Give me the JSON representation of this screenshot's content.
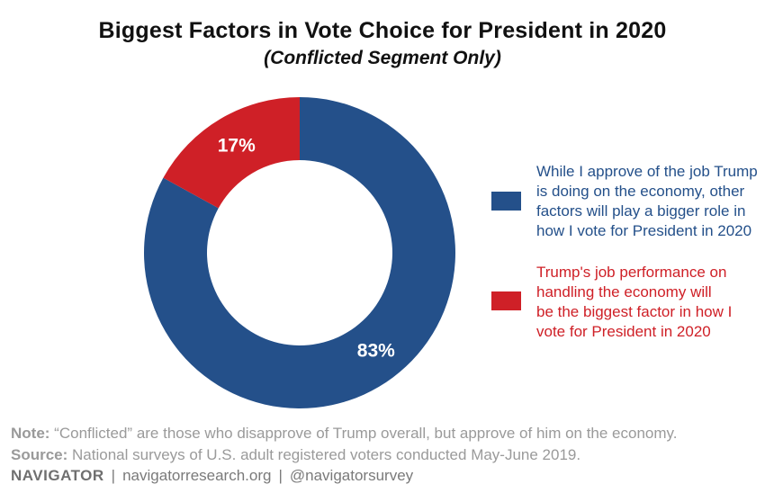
{
  "chart_data": {
    "type": "pie",
    "variant": "donut",
    "title": "Biggest Factors in Vote Choice for President in 2020",
    "subtitle": "(Conflicted Segment Only)",
    "slices": [
      {
        "label": "While I approve of the job Trump is doing on the economy, other factors will play a bigger role in how I vote for President in 2020",
        "value": 83,
        "display": "83%",
        "color": "#24508a"
      },
      {
        "label": "Trump's job performance on handling the economy will be the biggest factor in how I vote for President in 2020",
        "value": 17,
        "display": "17%",
        "color": "#cf2027"
      }
    ],
    "legend_position": "right"
  },
  "legend": [
    {
      "lines": [
        "While I approve of the job Trump",
        "is doing on the economy, other",
        "factors will play a bigger role in",
        "how I vote for President in 2020"
      ],
      "color": "#24508a"
    },
    {
      "lines": [
        "Trump's job performance on",
        "handling the economy will",
        "be the biggest factor in how I",
        "vote for President in 2020"
      ],
      "color": "#cf2027"
    }
  ],
  "footer": {
    "note_label": "Note:",
    "note_text": " “Conflicted” are those who disapprove of Trump overall, but approve of him on the economy.",
    "source_label": "Source:",
    "source_text": " National surveys of U.S. adult registered voters conducted May-June 2019.",
    "brand": "NAVIGATOR",
    "separator": "|",
    "website": "navigatorresearch.org",
    "handle": "@navigatorsurvey"
  }
}
